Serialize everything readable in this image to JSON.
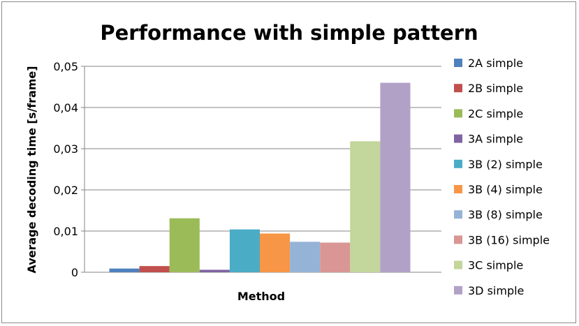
{
  "chart_data": {
    "type": "bar",
    "title": "Performance with simple pattern",
    "xlabel": "Method",
    "ylabel": "Average decoding time [s/frame]",
    "ylim": [
      0,
      0.05
    ],
    "yticks": [
      "0",
      "0,01",
      "0,02",
      "0,03",
      "0,04",
      "0,05"
    ],
    "ytick_values": [
      0,
      0.01,
      0.02,
      0.03,
      0.04,
      0.05
    ],
    "grid": true,
    "legend_position": "right",
    "series": [
      {
        "name": "2A simple",
        "value": 0.0009,
        "color": "#4f81bd"
      },
      {
        "name": "2B simple",
        "value": 0.0015,
        "color": "#c0504d"
      },
      {
        "name": "2C simple",
        "value": 0.0131,
        "color": "#9bbb59"
      },
      {
        "name": "3A simple",
        "value": 0.0006,
        "color": "#8064a2"
      },
      {
        "name": "3B (2) simple",
        "value": 0.0104,
        "color": "#4bacc6"
      },
      {
        "name": "3B (4) simple",
        "value": 0.0094,
        "color": "#f79646"
      },
      {
        "name": "3B (8) simple",
        "value": 0.0074,
        "color": "#95b3d7"
      },
      {
        "name": "3B (16) simple",
        "value": 0.0072,
        "color": "#d99694"
      },
      {
        "name": "3C simple",
        "value": 0.0318,
        "color": "#c3d69b"
      },
      {
        "name": "3D simple",
        "value": 0.046,
        "color": "#b2a1c7"
      }
    ]
  }
}
